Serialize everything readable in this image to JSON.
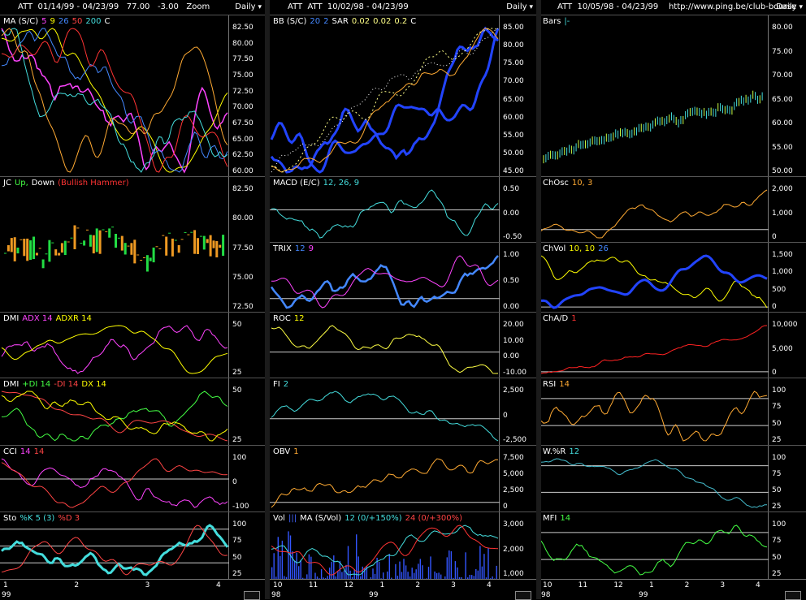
{
  "columns": [
    {
      "title": "ATT  01/14/99 - 04/23/99   77.00   -3.00   Zoom",
      "period": "Daily",
      "xticks": [
        "1",
        "2",
        "3",
        "4"
      ],
      "years": [
        "99"
      ],
      "panels": [
        {
          "label": [
            {
              "t": "MA (S/C)",
              "c": "#ffffff"
            },
            {
              "t": "5",
              "c": "#ff44ff"
            },
            {
              "t": "9",
              "c": "#ffff00"
            },
            {
              "t": "26",
              "c": "#4488ff"
            },
            {
              "t": "50",
              "c": "#ff4444"
            },
            {
              "t": "200",
              "c": "#44dddd"
            },
            {
              "t": "C",
              "c": "#ffffff"
            }
          ],
          "ticks": [
            "82.50",
            "80.00",
            "77.50",
            "75.00",
            "72.50",
            "70.00",
            "67.50",
            "65.00",
            "62.50",
            "60.00"
          ]
        },
        {
          "label": [
            {
              "t": "JC",
              "c": "#ffffff"
            },
            {
              "t": "Up,",
              "c": "#44ff44"
            },
            {
              "t": "Down",
              "c": "#ffffff"
            },
            {
              "t": "(Bullish Hammer)",
              "c": "#ff3333"
            }
          ],
          "ticks": [
            "82.50",
            "80.00",
            "77.50",
            "75.00",
            "72.50"
          ]
        },
        {
          "label": [
            {
              "t": "DMI",
              "c": "#ffffff"
            },
            {
              "t": "ADX 14",
              "c": "#ff44ff"
            },
            {
              "t": "ADXR 14",
              "c": "#ffff00"
            }
          ],
          "ticks": [
            "50",
            "25"
          ]
        },
        {
          "label": [
            {
              "t": "DMI",
              "c": "#ffffff"
            },
            {
              "t": "+DI 14",
              "c": "#44ff44"
            },
            {
              "t": "-DI 14",
              "c": "#ff4444"
            },
            {
              "t": "DX 14",
              "c": "#ffff00"
            }
          ],
          "ticks": [
            "50",
            "25"
          ]
        },
        {
          "label": [
            {
              "t": "CCI",
              "c": "#ffffff"
            },
            {
              "t": "14",
              "c": "#ff44ff"
            },
            {
              "t": "14",
              "c": "#ff4444"
            }
          ],
          "ticks": [
            "100",
            "0",
            "-100"
          ]
        },
        {
          "label": [
            {
              "t": "Sto",
              "c": "#ffffff"
            },
            {
              "t": "%K 5 (3)",
              "c": "#44dddd"
            },
            {
              "t": "%D 3",
              "c": "#ff4444"
            }
          ],
          "ticks": [
            "100",
            "75",
            "50",
            "25"
          ]
        }
      ]
    },
    {
      "title": "ATT  ATT  10/02/98 - 04/23/99",
      "period": "Daily",
      "xticks": [
        "10",
        "11",
        "12",
        "1",
        "2",
        "3",
        "4"
      ],
      "years": [
        "98",
        "99"
      ],
      "panels": [
        {
          "label": [
            {
              "t": "BB (S/C)",
              "c": "#ffffff"
            },
            {
              "t": "20",
              "c": "#4488ff"
            },
            {
              "t": "2",
              "c": "#4488ff"
            },
            {
              "t": "SAR",
              "c": "#ffffff"
            },
            {
              "t": "0.02",
              "c": "#ffff88"
            },
            {
              "t": "0.02",
              "c": "#ffff88"
            },
            {
              "t": "0.2",
              "c": "#ffff88"
            },
            {
              "t": "C",
              "c": "#ffffff"
            }
          ],
          "ticks": [
            "85.00",
            "80.00",
            "75.00",
            "70.00",
            "65.00",
            "60.00",
            "55.00",
            "50.00",
            "45.00"
          ]
        },
        {
          "label": [
            {
              "t": "MACD (E/C)",
              "c": "#ffffff"
            },
            {
              "t": "12, 26, 9",
              "c": "#44dddd"
            }
          ],
          "ticks": [
            "0.50",
            "0.00",
            "-0.50"
          ]
        },
        {
          "label": [
            {
              "t": "TRIX",
              "c": "#ffffff"
            },
            {
              "t": "12",
              "c": "#4488ff"
            },
            {
              "t": "9",
              "c": "#ff44ff"
            }
          ],
          "ticks": [
            "1.00",
            "0.50",
            "0.00"
          ]
        },
        {
          "label": [
            {
              "t": "ROC",
              "c": "#ffffff"
            },
            {
              "t": "12",
              "c": "#ffff00"
            }
          ],
          "ticks": [
            "20.00",
            "10.00",
            "0.00",
            "-10.00"
          ]
        },
        {
          "label": [
            {
              "t": "FI",
              "c": "#ffffff"
            },
            {
              "t": "2",
              "c": "#44dddd"
            }
          ],
          "ticks": [
            "2,500",
            "0",
            "-2,500"
          ]
        },
        {
          "label": [
            {
              "t": "OBV",
              "c": "#ffffff"
            },
            {
              "t": "1",
              "c": "#ffaa33"
            }
          ],
          "ticks": [
            "7,500",
            "5,000",
            "2,500",
            "0"
          ]
        },
        {
          "label": [
            {
              "t": "Vol",
              "c": "#ffffff"
            },
            {
              "t": "|||",
              "c": "#4466ff"
            },
            {
              "t": "MA (S/Vol)",
              "c": "#ffffff"
            },
            {
              "t": "12 (0/+150%)",
              "c": "#44dddd"
            },
            {
              "t": "24 (0/+300%)",
              "c": "#ff4444"
            }
          ],
          "ticks": [
            "3,000",
            "2,000",
            "1,000"
          ]
        }
      ]
    },
    {
      "title": "ATT  10/05/98 - 04/23/99    http://www.ping.be/club-bourse",
      "period": "Daily",
      "xticks": [
        "10",
        "11",
        "12",
        "1",
        "2",
        "3",
        "4"
      ],
      "years": [
        "98",
        "99"
      ],
      "panels": [
        {
          "label": [
            {
              "t": "Bars",
              "c": "#ffffff"
            },
            {
              "t": "|-",
              "c": "#44dddd"
            }
          ],
          "ticks": [
            "80.00",
            "75.00",
            "70.00",
            "65.00",
            "60.00",
            "55.00",
            "50.00"
          ]
        },
        {
          "label": [
            {
              "t": "ChOsc",
              "c": "#ffffff"
            },
            {
              "t": "10, 3",
              "c": "#ffaa33"
            }
          ],
          "ticks": [
            "2,000",
            "1,000",
            "0"
          ]
        },
        {
          "label": [
            {
              "t": "ChVol",
              "c": "#ffffff"
            },
            {
              "t": "10, 10",
              "c": "#ffff00"
            },
            {
              "t": "26",
              "c": "#4488ff"
            }
          ],
          "ticks": [
            "1,500",
            "1,000",
            "500",
            "0"
          ]
        },
        {
          "label": [
            {
              "t": "ChA/D",
              "c": "#ffffff"
            },
            {
              "t": "1",
              "c": "#ff3333"
            }
          ],
          "ticks": [
            "10,000",
            "5,000",
            "0"
          ]
        },
        {
          "label": [
            {
              "t": "RSI",
              "c": "#ffffff"
            },
            {
              "t": "14",
              "c": "#ffaa33"
            }
          ],
          "ticks": [
            "100",
            "75",
            "50",
            "25"
          ]
        },
        {
          "label": [
            {
              "t": "W.%R",
              "c": "#ffffff"
            },
            {
              "t": "12",
              "c": "#44dddd"
            }
          ],
          "ticks": [
            "100",
            "75",
            "50",
            "25"
          ]
        },
        {
          "label": [
            {
              "t": "MFI",
              "c": "#ffffff"
            },
            {
              "t": "14",
              "c": "#44ff44"
            }
          ],
          "ticks": [
            "100",
            "75",
            "50",
            "25"
          ]
        }
      ]
    }
  ]
}
